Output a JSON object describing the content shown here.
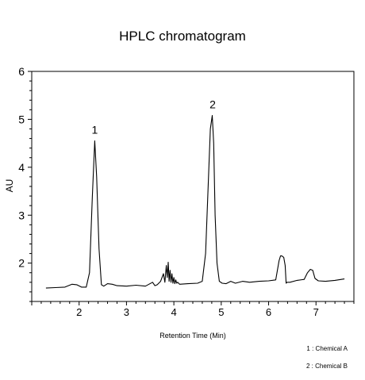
{
  "chart_data": {
    "type": "line",
    "title": "HPLC chromatogram",
    "xlabel": "Retention Time (Min)",
    "ylabel": "AU",
    "xlim": [
      1.0,
      7.8
    ],
    "ylim": [
      1.2,
      6.0
    ],
    "xticks": [
      2,
      3,
      4,
      5,
      6,
      7
    ],
    "yticks": [
      2,
      3,
      4,
      5,
      6
    ],
    "grid": false,
    "legend_position": "bottom-right",
    "series": [
      {
        "x": [
          1.3,
          1.5,
          1.7,
          1.85,
          1.95,
          2.05,
          2.15,
          2.22,
          2.28,
          2.33,
          2.37,
          2.42,
          2.47,
          2.52,
          2.6,
          2.7,
          2.8,
          3.0,
          3.2,
          3.4,
          3.55,
          3.6,
          3.65,
          3.72,
          3.78,
          3.81,
          3.84,
          3.86,
          3.88,
          3.9,
          3.92,
          3.94,
          3.96,
          3.98,
          4.0,
          4.02,
          4.04,
          4.06,
          4.08,
          4.12,
          4.3,
          4.5,
          4.6,
          4.67,
          4.72,
          4.77,
          4.81,
          4.84,
          4.87,
          4.91,
          4.96,
          5.02,
          5.1,
          5.2,
          5.3,
          5.45,
          5.6,
          5.8,
          6.0,
          6.15,
          6.22,
          6.25,
          6.28,
          6.32,
          6.35,
          6.37,
          6.39,
          6.45,
          6.6,
          6.75,
          6.82,
          6.88,
          6.93,
          6.98,
          7.05,
          7.2,
          7.4,
          7.6
        ],
        "y": [
          1.48,
          1.49,
          1.5,
          1.56,
          1.55,
          1.5,
          1.5,
          1.8,
          3.4,
          4.55,
          3.8,
          2.3,
          1.55,
          1.52,
          1.57,
          1.56,
          1.53,
          1.52,
          1.54,
          1.52,
          1.6,
          1.53,
          1.55,
          1.62,
          1.78,
          1.6,
          1.95,
          1.7,
          2.02,
          1.62,
          1.85,
          1.6,
          1.78,
          1.58,
          1.7,
          1.57,
          1.65,
          1.58,
          1.6,
          1.56,
          1.57,
          1.58,
          1.62,
          2.2,
          3.5,
          4.8,
          5.08,
          4.5,
          3.0,
          2.0,
          1.62,
          1.58,
          1.57,
          1.62,
          1.58,
          1.62,
          1.6,
          1.62,
          1.63,
          1.65,
          2.05,
          2.15,
          2.15,
          2.12,
          1.95,
          1.58,
          1.6,
          1.6,
          1.64,
          1.66,
          1.8,
          1.87,
          1.85,
          1.68,
          1.63,
          1.62,
          1.64,
          1.67
        ]
      }
    ],
    "annotations": [
      {
        "text": "1",
        "x": 2.33,
        "y": 4.55
      },
      {
        "text": "2",
        "x": 4.82,
        "y": 5.08
      }
    ],
    "legend_entries": [
      "1 : Chemical A",
      "2 : Chemical B"
    ]
  }
}
